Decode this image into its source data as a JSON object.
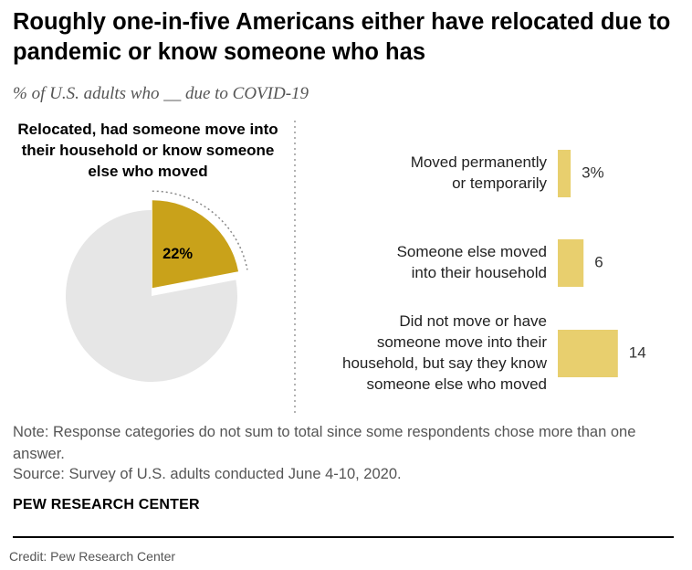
{
  "title": "Roughly one-in-five Americans either have relocated due to pandemic or know someone who has",
  "subtitle": "% of U.S. adults who __ due to COVID-19",
  "colors": {
    "pie_highlight": "#c9a21a",
    "pie_rest": "#e6e6e6",
    "bar": "#e8cf6e",
    "text_muted": "#555555"
  },
  "chart_data": [
    {
      "type": "pie",
      "title": "Relocated, had someone move into their household or know someone else who moved",
      "values": [
        22,
        78
      ],
      "labels": [
        "22%",
        ""
      ]
    },
    {
      "type": "bar",
      "orientation": "horizontal",
      "categories": [
        [
          "Moved permanently",
          "or temporarily"
        ],
        [
          "Someone else moved",
          "into their household"
        ],
        [
          "Did not move or have",
          "someone move into their",
          "household, but say they know",
          "someone else who moved"
        ]
      ],
      "values": [
        3,
        6,
        14
      ],
      "value_labels": [
        "3%",
        "6",
        "14"
      ]
    }
  ],
  "note": "Note: Response categories do not sum to total since some respondents chose more than one answer.",
  "source": "Source: Survey of U.S. adults conducted June 4-10, 2020.",
  "brand": "PEW RESEARCH CENTER",
  "credit": "Credit: Pew Research Center"
}
